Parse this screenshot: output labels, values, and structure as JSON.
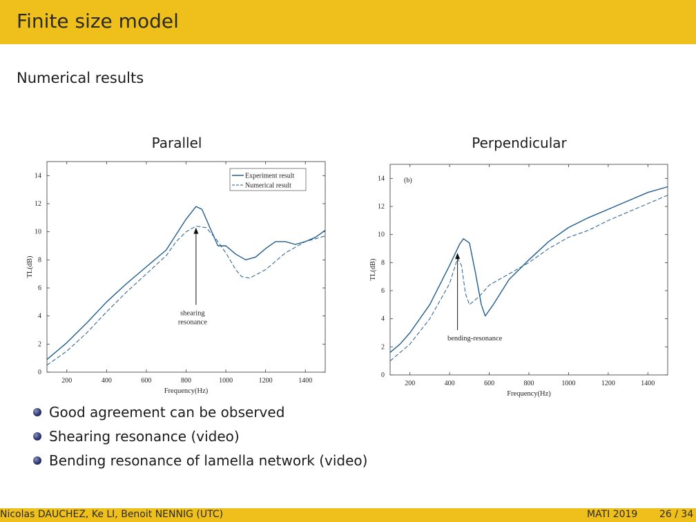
{
  "slide": {
    "title": "Finite size model",
    "section": "Numerical results"
  },
  "panels": {
    "left_title": "Parallel",
    "right_title": "Perpendicular"
  },
  "bullets": [
    "Good agreement can be observed",
    "Shearing resonance (video)",
    "Bending resonance of lamella network (video)"
  ],
  "footer": {
    "authors": "Nicolas DAUCHEZ, Ke LI, Benoit NENNIG  (UTC)",
    "conference": "MATI 2019",
    "page": "26 / 34"
  },
  "colors": {
    "accent": "#efbf1c",
    "series": "#1f5b8c"
  },
  "chart_data": [
    {
      "type": "line",
      "panel": "Parallel",
      "xlabel": "Frequency(Hz)",
      "ylabel": "TL(dB)",
      "xlim": [
        100,
        1500
      ],
      "ylim": [
        0,
        15
      ],
      "xticks": [
        200,
        400,
        600,
        800,
        1000,
        1200,
        1400
      ],
      "yticks": [
        0,
        2,
        4,
        6,
        8,
        10,
        12,
        14
      ],
      "legend": "top-right",
      "annotation": {
        "text": [
          "shearing",
          "resonance"
        ],
        "x": 850,
        "y": 10.3
      },
      "series": [
        {
          "name": "Experiment result",
          "style": "solid",
          "points": [
            [
              100,
              0.9
            ],
            [
              150,
              1.5
            ],
            [
              200,
              2.1
            ],
            [
              300,
              3.5
            ],
            [
              400,
              5.0
            ],
            [
              500,
              6.3
            ],
            [
              600,
              7.5
            ],
            [
              700,
              8.7
            ],
            [
              750,
              9.8
            ],
            [
              800,
              10.9
            ],
            [
              850,
              11.8
            ],
            [
              880,
              11.6
            ],
            [
              920,
              10.3
            ],
            [
              960,
              9.0
            ],
            [
              1000,
              9.0
            ],
            [
              1050,
              8.4
            ],
            [
              1100,
              8.0
            ],
            [
              1150,
              8.2
            ],
            [
              1200,
              8.8
            ],
            [
              1250,
              9.3
            ],
            [
              1300,
              9.3
            ],
            [
              1350,
              9.1
            ],
            [
              1400,
              9.3
            ],
            [
              1450,
              9.6
            ],
            [
              1500,
              10.1
            ]
          ]
        },
        {
          "name": "Numerical result",
          "style": "dashed",
          "points": [
            [
              100,
              0.5
            ],
            [
              150,
              1.0
            ],
            [
              200,
              1.5
            ],
            [
              300,
              2.8
            ],
            [
              400,
              4.3
            ],
            [
              500,
              5.7
            ],
            [
              600,
              7.0
            ],
            [
              700,
              8.3
            ],
            [
              750,
              9.3
            ],
            [
              800,
              10.0
            ],
            [
              850,
              10.4
            ],
            [
              900,
              10.3
            ],
            [
              950,
              9.5
            ],
            [
              1000,
              8.5
            ],
            [
              1050,
              7.3
            ],
            [
              1080,
              6.8
            ],
            [
              1120,
              6.7
            ],
            [
              1200,
              7.3
            ],
            [
              1300,
              8.5
            ],
            [
              1400,
              9.3
            ],
            [
              1500,
              9.7
            ]
          ]
        }
      ]
    },
    {
      "type": "line",
      "panel": "Perpendicular",
      "xlabel": "Frequency(Hz)",
      "ylabel": "TL(dB)",
      "xlim": [
        100,
        1500
      ],
      "ylim": [
        0,
        15
      ],
      "xticks": [
        200,
        400,
        600,
        800,
        1000,
        1200,
        1400
      ],
      "yticks": [
        0,
        2,
        4,
        6,
        8,
        10,
        12,
        14
      ],
      "panel_label": "(b)",
      "annotation": {
        "text": [
          "bending-resonance"
        ],
        "x": 440,
        "y": 8.7
      },
      "series": [
        {
          "style": "solid",
          "points": [
            [
              100,
              1.6
            ],
            [
              150,
              2.2
            ],
            [
              200,
              3.0
            ],
            [
              300,
              5.0
            ],
            [
              400,
              7.8
            ],
            [
              450,
              9.3
            ],
            [
              470,
              9.7
            ],
            [
              500,
              9.4
            ],
            [
              530,
              7.3
            ],
            [
              560,
              5.0
            ],
            [
              580,
              4.2
            ],
            [
              620,
              5.0
            ],
            [
              700,
              6.8
            ],
            [
              800,
              8.2
            ],
            [
              900,
              9.5
            ],
            [
              1000,
              10.5
            ],
            [
              1100,
              11.2
            ],
            [
              1200,
              11.8
            ],
            [
              1300,
              12.4
            ],
            [
              1400,
              13.0
            ],
            [
              1500,
              13.4
            ]
          ]
        },
        {
          "style": "dashed",
          "points": [
            [
              100,
              1.0
            ],
            [
              150,
              1.6
            ],
            [
              200,
              2.2
            ],
            [
              300,
              4.0
            ],
            [
              400,
              6.5
            ],
            [
              440,
              8.3
            ],
            [
              460,
              7.8
            ],
            [
              480,
              5.8
            ],
            [
              500,
              5.0
            ],
            [
              550,
              5.6
            ],
            [
              600,
              6.4
            ],
            [
              700,
              7.2
            ],
            [
              800,
              8.0
            ],
            [
              900,
              9.0
            ],
            [
              1000,
              9.8
            ],
            [
              1100,
              10.3
            ],
            [
              1200,
              11.0
            ],
            [
              1300,
              11.6
            ],
            [
              1400,
              12.2
            ],
            [
              1500,
              12.8
            ]
          ]
        }
      ]
    }
  ]
}
